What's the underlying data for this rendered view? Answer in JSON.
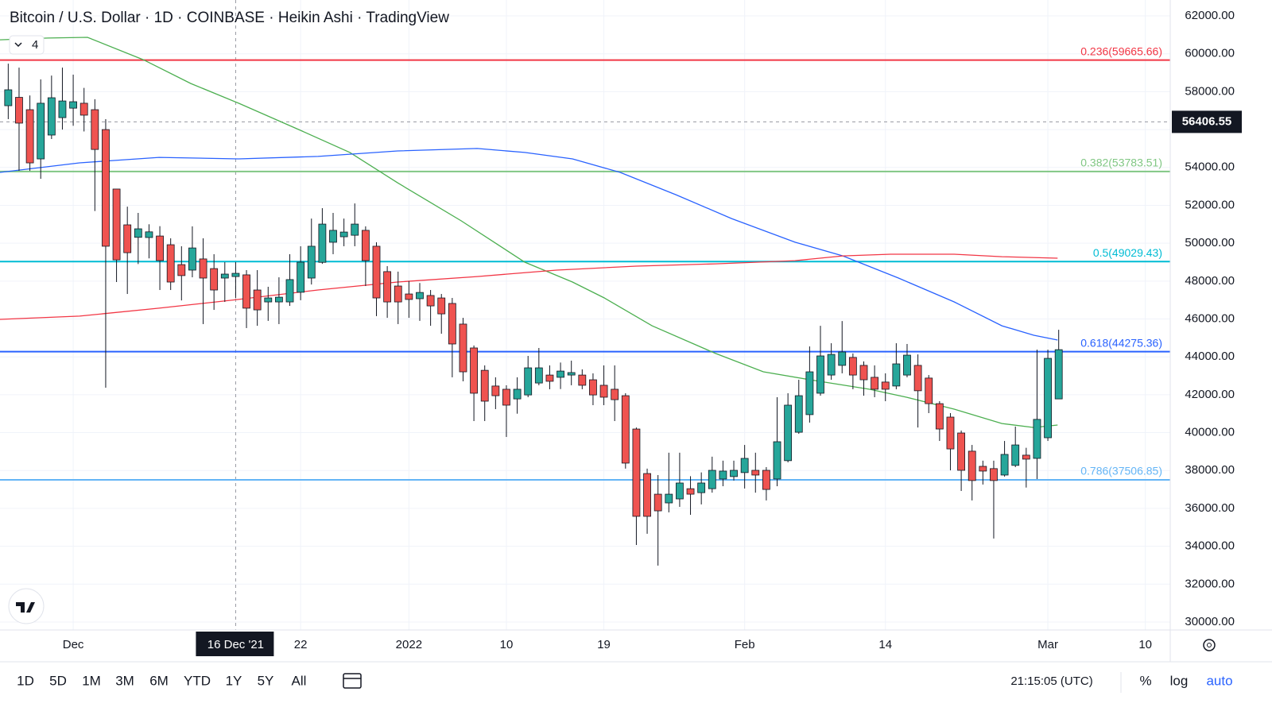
{
  "chart_data": {
    "type": "candlestick",
    "title": "Bitcoin / U.S. Dollar · 1D · COINBASE · Heikin Ashi · TradingView",
    "indicator_count": 4,
    "up_color": "#26a69a",
    "down_color": "#ef5350",
    "open": [
      57260,
      57700,
      57050,
      54450,
      55710,
      56630,
      57130,
      57390,
      57050,
      56000,
      52860,
      50970,
      50310,
      50300,
      50380,
      49920,
      48870,
      48580,
      49170,
      48660,
      48160,
      48240,
      48330,
      47530,
      46900,
      46900,
      46900,
      47410,
      48160,
      48990,
      50050,
      50340,
      50420,
      50680,
      49840,
      48500,
      47740,
      47320,
      47070,
      47240,
      47110,
      46820,
      45730,
      44470,
      43290,
      42460,
      42290,
      41780,
      41990,
      42620,
      43040,
      42920,
      43040,
      43040,
      42790,
      42500,
      42290,
      41950,
      40190,
      37840,
      36750,
      36290,
      36500,
      37040,
      36830,
      37040,
      37550,
      37680,
      37890,
      38010,
      38010,
      37550,
      38520,
      40020,
      40950,
      42080,
      43040,
      43550,
      43970,
      43550,
      42920,
      42670,
      42460,
      43040,
      43550,
      42880,
      41530,
      40820,
      39980,
      39020,
      38220,
      38100,
      37760,
      38270,
      38810,
      38640,
      39730,
      41780
    ],
    "high": [
      59480,
      59270,
      57800,
      58650,
      58850,
      59270,
      58900,
      58200,
      57600,
      56550,
      52860,
      51930,
      51600,
      51000,
      50900,
      50260,
      49840,
      50890,
      50260,
      49420,
      49000,
      49000,
      48580,
      48580,
      47700,
      48200,
      49420,
      49840,
      51300,
      51850,
      51600,
      51300,
      52100,
      50890,
      50050,
      48790,
      48500,
      48000,
      47900,
      47530,
      47320,
      47110,
      46060,
      44600,
      43550,
      42920,
      42500,
      42920,
      44050,
      44470,
      43550,
      43700,
      43800,
      43340,
      43130,
      43550,
      43550,
      42080,
      40270,
      38100,
      37760,
      38940,
      38940,
      37700,
      37900,
      38730,
      38520,
      38520,
      39350,
      38940,
      38180,
      41870,
      42080,
      42790,
      44550,
      45640,
      44720,
      45890,
      44180,
      43760,
      43550,
      43130,
      44720,
      44680,
      44130,
      43040,
      41660,
      41030,
      40110,
      39350,
      38520,
      38520,
      39560,
      40320,
      39200,
      44380,
      44380,
      45430
    ],
    "low": [
      56550,
      53820,
      53820,
      53400,
      55500,
      56000,
      56200,
      55900,
      51700,
      42370,
      47950,
      47320,
      48900,
      49200,
      47530,
      47530,
      46980,
      48200,
      45730,
      46480,
      46900,
      47100,
      45520,
      45640,
      45900,
      45730,
      46690,
      46990,
      47820,
      48910,
      49420,
      49840,
      49840,
      47740,
      46150,
      46060,
      45730,
      46060,
      45900,
      45640,
      45220,
      42920,
      42710,
      40610,
      40610,
      41240,
      39770,
      41000,
      41870,
      42500,
      42290,
      42300,
      42500,
      42290,
      41450,
      41450,
      40610,
      38100,
      34070,
      34660,
      32980,
      35790,
      36080,
      35660,
      36210,
      36830,
      37170,
      37470,
      37050,
      36830,
      36420,
      37170,
      38430,
      39940,
      40530,
      41950,
      42790,
      43130,
      42290,
      41950,
      41870,
      41660,
      42290,
      42920,
      40270,
      41030,
      39560,
      38010,
      36920,
      36420,
      37260,
      34410,
      37680,
      38180,
      37100,
      37550,
      39560,
      41780
    ],
    "close": [
      58100,
      56340,
      54240,
      57390,
      57680,
      57510,
      57470,
      56760,
      54950,
      49840,
      49120,
      49500,
      50760,
      50600,
      49080,
      47950,
      48290,
      49750,
      48160,
      47530,
      48370,
      48410,
      46570,
      46480,
      47110,
      47150,
      48080,
      49000,
      49840,
      51010,
      50680,
      50590,
      51010,
      49080,
      47110,
      46900,
      46900,
      47030,
      47400,
      46690,
      46270,
      44680,
      43210,
      42080,
      41660,
      41950,
      41450,
      42290,
      43420,
      43420,
      42710,
      43250,
      43170,
      42500,
      41990,
      41870,
      41740,
      38390,
      35580,
      35580,
      35870,
      36750,
      37340,
      36750,
      37340,
      38010,
      37970,
      38010,
      38640,
      37760,
      37000,
      39520,
      41450,
      41950,
      43210,
      44050,
      44130,
      44260,
      43040,
      42790,
      42290,
      42290,
      43630,
      44090,
      42210,
      41530,
      40190,
      39140,
      38010,
      37470,
      37970,
      37470,
      38850,
      39350,
      38600,
      40700,
      43920,
      44380
    ],
    "moving_averages": [
      {
        "color": "#4caf50",
        "x": [
          -0.76,
          3.65,
          7.32,
          12.46,
          16.86,
          21.27,
          27.14,
          31.55,
          35.95,
          41.83,
          47.7,
          52.1,
          55.04,
          59.45,
          65.32,
          69.73,
          74.87,
          79.54,
          82.94,
          87.35,
          91.76,
          94.7,
          96.9
        ],
        "values": [
          60740,
          60830,
          60870,
          59690,
          58430,
          57390,
          55920,
          54790,
          53190,
          51180,
          49000,
          47950,
          47110,
          45640,
          44180,
          43210,
          42710,
          42290,
          41870,
          41240,
          40480,
          40270,
          40400
        ]
      },
      {
        "color": "#2962ff",
        "x": [
          -0.76,
          6.59,
          13.93,
          21.27,
          28.61,
          35.95,
          43.3,
          47.7,
          52.1,
          56.51,
          61.65,
          66.79,
          72.66,
          77.07,
          82.21,
          87.35,
          91.76,
          94.7,
          96.9
        ],
        "values": [
          53740,
          54240,
          54530,
          54450,
          54580,
          54870,
          55000,
          54790,
          54450,
          53740,
          52560,
          51300,
          50050,
          49330,
          48160,
          46900,
          45640,
          45140,
          44890
        ]
      },
      {
        "color": "#f23645",
        "x": [
          -0.76,
          6.59,
          13.93,
          21.27,
          28.61,
          35.95,
          43.3,
          50.64,
          57.98,
          65.32,
          72.66,
          77.07,
          81.47,
          87.35,
          91.76,
          96.9
        ],
        "values": [
          45980,
          46150,
          46570,
          47030,
          47530,
          47950,
          48240,
          48580,
          48790,
          48910,
          49080,
          49330,
          49420,
          49420,
          49290,
          49210
        ]
      }
    ],
    "levels": [
      {
        "value": 59665.66,
        "label": "0.236(59665.66)",
        "color": "#f23645"
      },
      {
        "value": 53783.51,
        "label": "0.382(53783.51)",
        "color": "#81c784"
      },
      {
        "value": 49029.43,
        "label": "0.5(49029.43)",
        "color": "#00bcd4"
      },
      {
        "value": 44275.36,
        "label": "0.618(44275.36)",
        "color": "#2962ff"
      },
      {
        "value": 37506.85,
        "label": "0.786(37506.85)",
        "color": "#64b5f6"
      }
    ],
    "crosshair": {
      "x": 21,
      "x_label": "16 Dec '21",
      "y": 56406.55
    },
    "xlim": [
      -0.76,
      107.3
    ],
    "xticks": [
      {
        "value": 6,
        "label": "Dec"
      },
      {
        "value": 27,
        "label": "22"
      },
      {
        "value": 37,
        "label": "2022"
      },
      {
        "value": 46,
        "label": "10"
      },
      {
        "value": 55,
        "label": "19"
      },
      {
        "value": 68,
        "label": "Feb"
      },
      {
        "value": 81,
        "label": "14"
      },
      {
        "value": 96,
        "label": "Mar"
      },
      {
        "value": 105,
        "label": "10"
      }
    ],
    "ylim": [
      29580,
      62840
    ],
    "yticks": [
      {
        "value": 30000,
        "label": "30000.00"
      },
      {
        "value": 32000,
        "label": "32000.00"
      },
      {
        "value": 34000,
        "label": "34000.00"
      },
      {
        "value": 36000,
        "label": "36000.00"
      },
      {
        "value": 38000,
        "label": "38000.00"
      },
      {
        "value": 40000,
        "label": "40000.00"
      },
      {
        "value": 42000,
        "label": "42000.00"
      },
      {
        "value": 44000,
        "label": "44000.00"
      },
      {
        "value": 46000,
        "label": "46000.00"
      },
      {
        "value": 48000,
        "label": "48000.00"
      },
      {
        "value": 50000,
        "label": "50000.00"
      },
      {
        "value": 52000,
        "label": "52000.00"
      },
      {
        "value": 54000,
        "label": "54000.00"
      },
      {
        "value": 56000,
        "label": "56000.00"
      },
      {
        "value": 58000,
        "label": "58000.00"
      },
      {
        "value": 60000,
        "label": "60000.00"
      },
      {
        "value": 62000,
        "label": "62000.00"
      }
    ],
    "grid": true
  },
  "toolbar": {
    "ranges": [
      "1D",
      "5D",
      "1M",
      "3M",
      "6M",
      "YTD",
      "1Y",
      "5Y",
      "All"
    ],
    "clock": "21:15:05 (UTC)",
    "percent": "%",
    "log": "log",
    "auto": "auto"
  }
}
